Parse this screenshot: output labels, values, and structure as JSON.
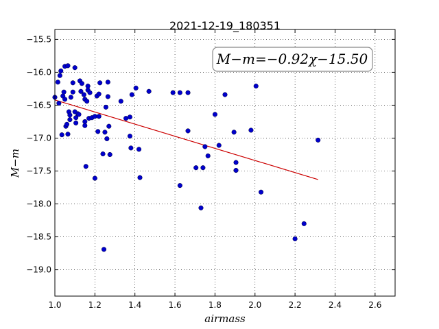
{
  "chart_data": {
    "type": "scatter",
    "title": "2021-12-19_180351",
    "xlabel": "airmass",
    "ylabel": "M−m",
    "xlim": [
      1.0,
      2.7
    ],
    "ylim": [
      -19.4,
      -15.35
    ],
    "y_inverted": true,
    "grid": true,
    "x_ticks": [
      "1.0",
      "1.2",
      "1.4",
      "1.6",
      "1.8",
      "2.0",
      "2.2",
      "2.4",
      "2.6"
    ],
    "y_ticks": [
      "−15.5",
      "−16.0",
      "−16.5",
      "−17.0",
      "−17.5",
      "−18.0",
      "−18.5",
      "−19.0"
    ],
    "annotation": "M−m=−0.92χ−15.50",
    "point_color": "#0000cc",
    "fit_color": "#cc0000",
    "fit_line": {
      "slope": -0.92,
      "intercept": -15.5,
      "x_range": [
        1.0,
        2.315
      ]
    },
    "points": [
      {
        "x": 1.0,
        "y": -16.38
      },
      {
        "x": 1.015,
        "y": -16.15
      },
      {
        "x": 1.02,
        "y": -16.47
      },
      {
        "x": 1.025,
        "y": -16.05
      },
      {
        "x": 1.03,
        "y": -15.98
      },
      {
        "x": 1.035,
        "y": -16.95
      },
      {
        "x": 1.04,
        "y": -16.36
      },
      {
        "x": 1.045,
        "y": -16.3
      },
      {
        "x": 1.05,
        "y": -15.91
      },
      {
        "x": 1.05,
        "y": -16.41
      },
      {
        "x": 1.055,
        "y": -16.82
      },
      {
        "x": 1.06,
        "y": -16.79
      },
      {
        "x": 1.065,
        "y": -15.9
      },
      {
        "x": 1.065,
        "y": -16.94
      },
      {
        "x": 1.07,
        "y": -16.6
      },
      {
        "x": 1.075,
        "y": -16.65
      },
      {
        "x": 1.075,
        "y": -16.72
      },
      {
        "x": 1.08,
        "y": -16.38
      },
      {
        "x": 1.09,
        "y": -16.3
      },
      {
        "x": 1.09,
        "y": -16.16
      },
      {
        "x": 1.1,
        "y": -15.93
      },
      {
        "x": 1.1,
        "y": -16.6
      },
      {
        "x": 1.105,
        "y": -16.69
      },
      {
        "x": 1.105,
        "y": -16.77
      },
      {
        "x": 1.115,
        "y": -16.63
      },
      {
        "x": 1.12,
        "y": -16.64
      },
      {
        "x": 1.125,
        "y": -16.13
      },
      {
        "x": 1.13,
        "y": -16.29
      },
      {
        "x": 1.135,
        "y": -16.17
      },
      {
        "x": 1.145,
        "y": -16.34
      },
      {
        "x": 1.15,
        "y": -16.41
      },
      {
        "x": 1.15,
        "y": -16.75
      },
      {
        "x": 1.15,
        "y": -16.81
      },
      {
        "x": 1.155,
        "y": -17.43
      },
      {
        "x": 1.16,
        "y": -16.44
      },
      {
        "x": 1.165,
        "y": -16.21
      },
      {
        "x": 1.165,
        "y": -16.27
      },
      {
        "x": 1.17,
        "y": -16.7
      },
      {
        "x": 1.175,
        "y": -16.31
      },
      {
        "x": 1.185,
        "y": -16.69
      },
      {
        "x": 1.2,
        "y": -16.67
      },
      {
        "x": 1.2,
        "y": -17.61
      },
      {
        "x": 1.21,
        "y": -16.36
      },
      {
        "x": 1.215,
        "y": -16.9
      },
      {
        "x": 1.22,
        "y": -16.33
      },
      {
        "x": 1.22,
        "y": -16.67
      },
      {
        "x": 1.225,
        "y": -16.16
      },
      {
        "x": 1.24,
        "y": -17.24
      },
      {
        "x": 1.245,
        "y": -18.69
      },
      {
        "x": 1.25,
        "y": -16.91
      },
      {
        "x": 1.255,
        "y": -16.53
      },
      {
        "x": 1.26,
        "y": -17.01
      },
      {
        "x": 1.265,
        "y": -16.15
      },
      {
        "x": 1.265,
        "y": -16.37
      },
      {
        "x": 1.27,
        "y": -16.82
      },
      {
        "x": 1.275,
        "y": -17.25
      },
      {
        "x": 1.33,
        "y": -16.44
      },
      {
        "x": 1.355,
        "y": -16.7
      },
      {
        "x": 1.375,
        "y": -16.68
      },
      {
        "x": 1.375,
        "y": -16.97
      },
      {
        "x": 1.38,
        "y": -17.15
      },
      {
        "x": 1.385,
        "y": -16.34
      },
      {
        "x": 1.405,
        "y": -16.24
      },
      {
        "x": 1.42,
        "y": -17.17
      },
      {
        "x": 1.425,
        "y": -17.6
      },
      {
        "x": 1.47,
        "y": -16.29
      },
      {
        "x": 1.59,
        "y": -16.31
      },
      {
        "x": 1.625,
        "y": -16.31
      },
      {
        "x": 1.625,
        "y": -17.72
      },
      {
        "x": 1.665,
        "y": -16.31
      },
      {
        "x": 1.665,
        "y": -16.89
      },
      {
        "x": 1.705,
        "y": -17.45
      },
      {
        "x": 1.73,
        "y": -18.06
      },
      {
        "x": 1.74,
        "y": -17.45
      },
      {
        "x": 1.75,
        "y": -17.13
      },
      {
        "x": 1.765,
        "y": -17.27
      },
      {
        "x": 1.8,
        "y": -16.64
      },
      {
        "x": 1.82,
        "y": -17.11
      },
      {
        "x": 1.85,
        "y": -16.34
      },
      {
        "x": 1.895,
        "y": -16.91
      },
      {
        "x": 1.905,
        "y": -17.37
      },
      {
        "x": 1.905,
        "y": -17.49
      },
      {
        "x": 1.98,
        "y": -16.88
      },
      {
        "x": 2.005,
        "y": -16.21
      },
      {
        "x": 2.03,
        "y": -17.82
      },
      {
        "x": 2.2,
        "y": -18.53
      },
      {
        "x": 2.245,
        "y": -18.3
      },
      {
        "x": 2.315,
        "y": -17.03
      }
    ]
  }
}
